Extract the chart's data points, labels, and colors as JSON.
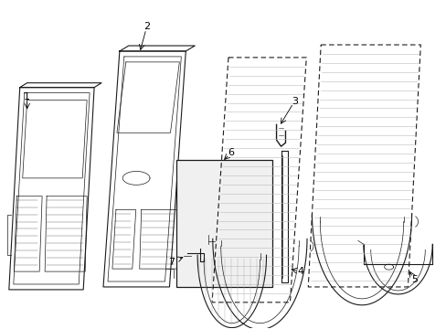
{
  "bg_color": "#ffffff",
  "line_color": "#1a1a1a",
  "label_color": "#000000",
  "label_font_size": 8,
  "figsize": [
    4.89,
    3.6
  ],
  "dpi": 100
}
